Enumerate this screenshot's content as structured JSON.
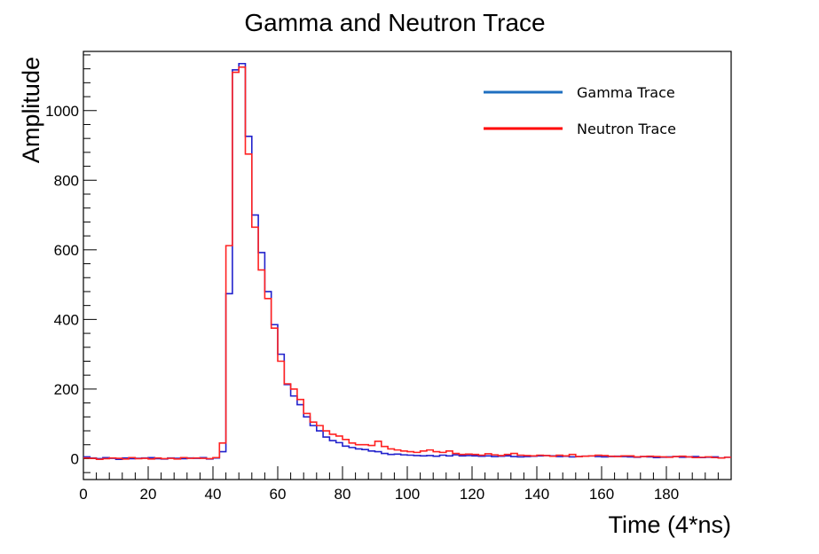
{
  "chart_data": {
    "type": "line",
    "title": "Gamma and Neutron Trace",
    "xlabel": "Time (4*ns)",
    "ylabel": "Amplitude",
    "xlim": [
      0,
      200
    ],
    "ylim": [
      -60,
      1170
    ],
    "x_ticks": [
      "0",
      "20",
      "40",
      "60",
      "80",
      "100",
      "120",
      "140",
      "160",
      "180"
    ],
    "y_ticks": [
      "0",
      "200",
      "400",
      "600",
      "800",
      "1000"
    ],
    "grid": false,
    "legend_position": "top-right",
    "series": [
      {
        "name": "Gamma Trace",
        "color": "#2222cc",
        "legend_color": "#1f6fc0",
        "values": [
          5,
          2,
          0,
          3,
          1,
          -2,
          2,
          0,
          1,
          2,
          3,
          0,
          -1,
          2,
          1,
          0,
          2,
          1,
          3,
          -1,
          2,
          20,
          474,
          1117,
          1135,
          926,
          700,
          592,
          480,
          385,
          300,
          213,
          180,
          155,
          120,
          95,
          80,
          62,
          52,
          46,
          36,
          32,
          28,
          26,
          22,
          20,
          15,
          12,
          13,
          11,
          10,
          9,
          8,
          9,
          7,
          10,
          8,
          11,
          8,
          9,
          8,
          7,
          8,
          6,
          7,
          8,
          6,
          5,
          6,
          7,
          8,
          9,
          8,
          6,
          7,
          5,
          6,
          7,
          8,
          6,
          5,
          6,
          7,
          6,
          5,
          4,
          6,
          5,
          3,
          4,
          5,
          6,
          4,
          5,
          6,
          3,
          4,
          5,
          2,
          4
        ]
      },
      {
        "name": "Neutron Trace",
        "color": "#ff2222",
        "legend_color": "#ff0000",
        "values": [
          2,
          1,
          -2,
          0,
          2,
          1,
          -1,
          3,
          0,
          1,
          -1,
          2,
          0,
          1,
          -1,
          3,
          1,
          2,
          1,
          0,
          3,
          45,
          612,
          1110,
          1125,
          875,
          665,
          542,
          460,
          375,
          280,
          215,
          200,
          170,
          130,
          105,
          95,
          80,
          70,
          65,
          55,
          45,
          40,
          40,
          38,
          50,
          35,
          28,
          25,
          22,
          20,
          18,
          22,
          25,
          20,
          18,
          22,
          15,
          12,
          13,
          12,
          10,
          14,
          11,
          9,
          12,
          15,
          10,
          9,
          8,
          10,
          9,
          7,
          10,
          8,
          12,
          6,
          7,
          8,
          10,
          9,
          7,
          6,
          8,
          8,
          5,
          6,
          7,
          6,
          5,
          4,
          6,
          7,
          5,
          3,
          4,
          5,
          3,
          2,
          4
        ]
      }
    ]
  }
}
